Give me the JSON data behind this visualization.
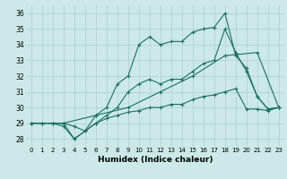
{
  "xlabel": "Humidex (Indice chaleur)",
  "bg_color": "#cce8e8",
  "grid_color": "#aad0d0",
  "line_color": "#1a7060",
  "xlim": [
    -0.5,
    23.5
  ],
  "ylim": [
    27.5,
    36.5
  ],
  "yticks": [
    28,
    29,
    30,
    31,
    32,
    33,
    34,
    35,
    36
  ],
  "xticks": [
    0,
    1,
    2,
    3,
    4,
    5,
    6,
    7,
    8,
    9,
    10,
    11,
    12,
    13,
    14,
    15,
    16,
    17,
    18,
    19,
    20,
    21,
    22,
    23
  ],
  "line1_x": [
    0,
    1,
    2,
    3,
    4,
    5,
    6,
    7,
    8,
    9,
    10,
    11,
    12,
    13,
    14,
    15,
    16,
    17,
    18,
    19,
    20,
    21,
    22,
    23
  ],
  "line1_y": [
    29,
    29,
    29,
    29,
    28,
    28.5,
    29.5,
    30,
    31.5,
    32,
    34,
    34.5,
    34,
    34.2,
    34.2,
    34.8,
    35,
    35.1,
    36,
    33.3,
    32.5,
    30.7,
    29.9,
    30
  ],
  "line2_x": [
    0,
    1,
    2,
    3,
    4,
    5,
    6,
    7,
    8,
    9,
    10,
    11,
    12,
    13,
    14,
    15,
    16,
    17,
    18,
    19,
    20,
    21,
    22,
    23
  ],
  "line2_y": [
    29,
    29,
    29,
    29,
    28.8,
    28.5,
    29,
    29.5,
    30,
    31,
    31.5,
    31.8,
    31.5,
    31.8,
    31.8,
    32.3,
    32.8,
    33,
    35,
    33.5,
    32.3,
    30.7,
    29.9,
    30
  ],
  "line3_x": [
    0,
    3,
    6,
    9,
    12,
    15,
    18,
    21,
    23
  ],
  "line3_y": [
    29,
    29,
    29.5,
    30,
    31,
    32,
    33.3,
    33.5,
    30
  ],
  "line4_x": [
    0,
    1,
    2,
    3,
    4,
    5,
    6,
    7,
    8,
    9,
    10,
    11,
    12,
    13,
    14,
    15,
    16,
    17,
    18,
    19,
    20,
    21,
    22,
    23
  ],
  "line4_y": [
    29,
    29,
    29,
    28.8,
    28,
    28.5,
    29,
    29.3,
    29.5,
    29.7,
    29.8,
    30,
    30,
    30.2,
    30.2,
    30.5,
    30.7,
    30.8,
    31,
    31.2,
    29.9,
    29.9,
    29.8,
    30
  ]
}
